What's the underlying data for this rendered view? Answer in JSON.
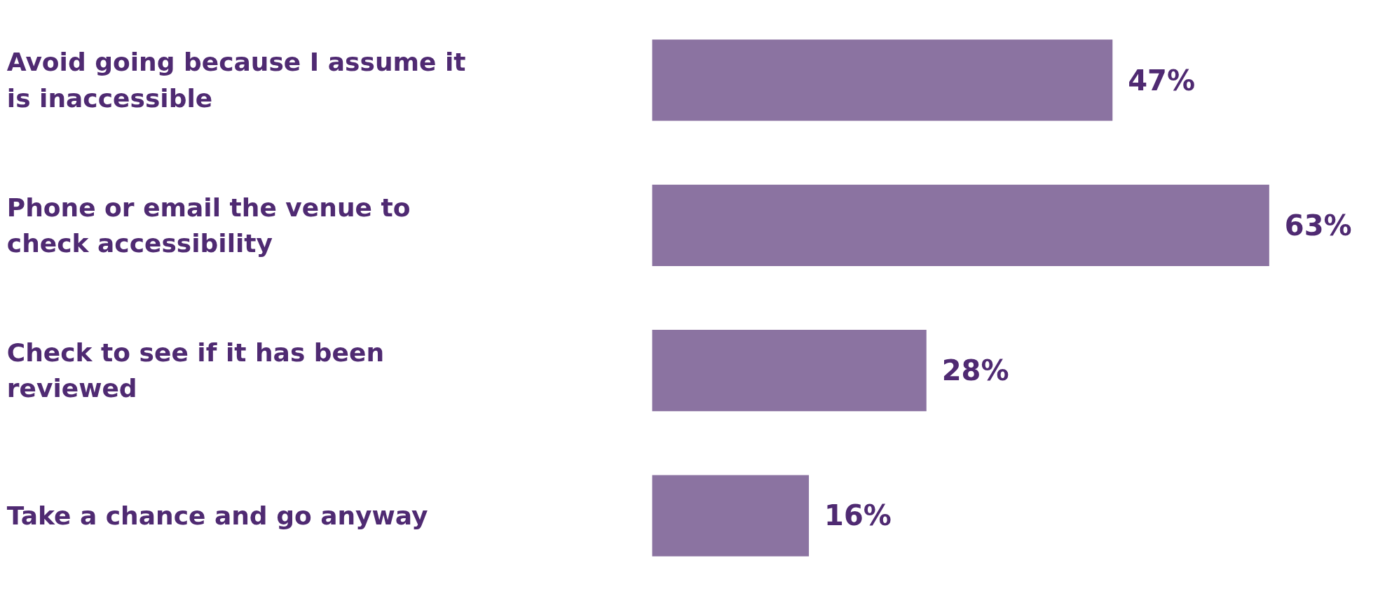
{
  "chart_data": {
    "type": "bar",
    "orientation": "horizontal",
    "categories": [
      "Avoid going because I assume it is inaccessible",
      "Phone or email the venue to check accessibility",
      "Check to see if it has been reviewed",
      "Take a chance and go anyway"
    ],
    "series": [
      {
        "color": "#8b73a1",
        "values": [
          47,
          63,
          28,
          16
        ],
        "value_labels": [
          "47%",
          "63%",
          "28%",
          "16%"
        ]
      }
    ],
    "grid": false
  }
}
